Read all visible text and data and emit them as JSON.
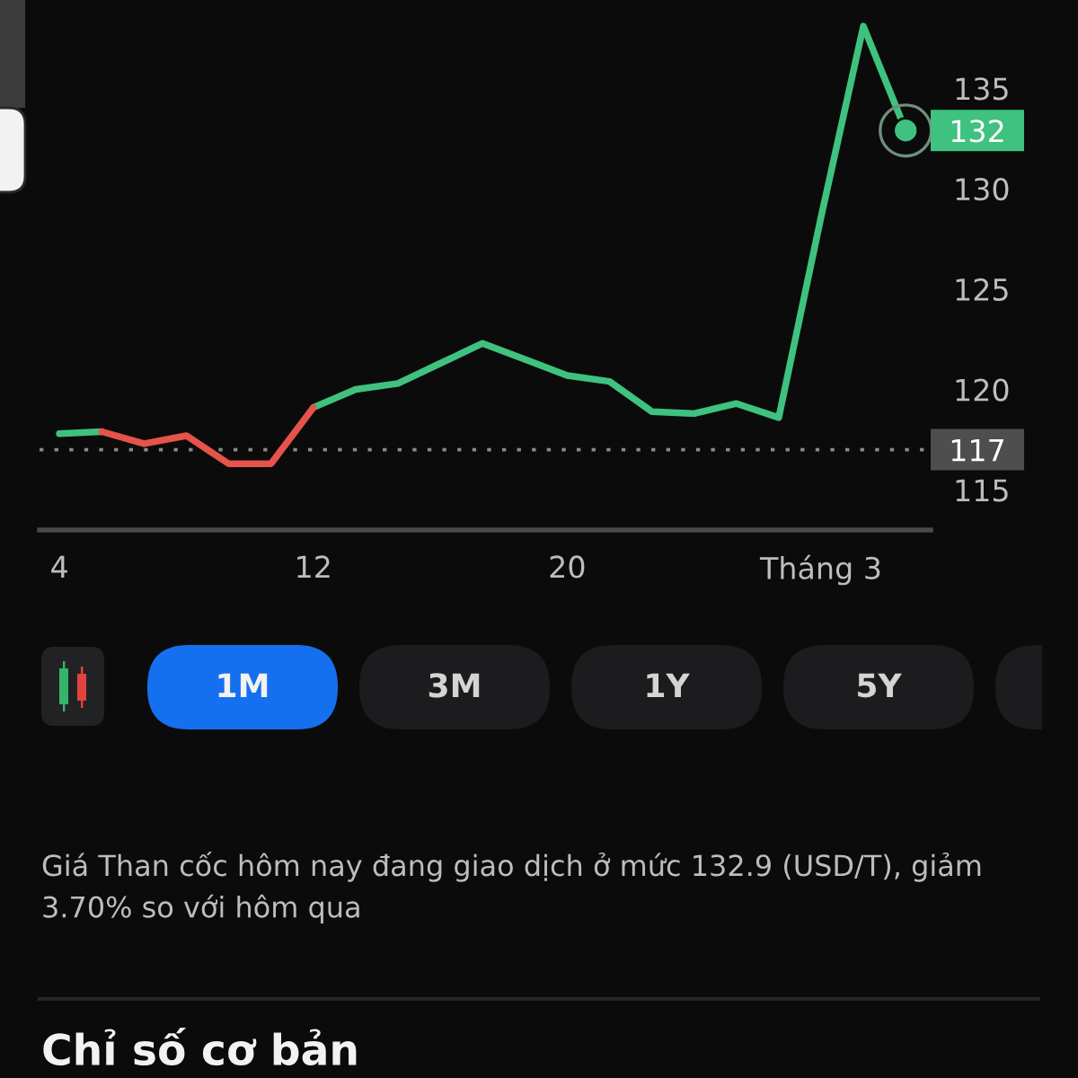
{
  "chart_data": [
    {
      "type": "line",
      "categories": [
        "4",
        null,
        null,
        null,
        null,
        null,
        "12",
        null,
        null,
        null,
        null,
        null,
        "20",
        null,
        null,
        null,
        null,
        null,
        "Tháng 3",
        null,
        null
      ],
      "series": [
        {
          "color": "#3fc27f",
          "values": [
            117.8,
            117.9,
            null,
            null,
            null,
            null,
            119.1,
            120.0,
            120.3,
            121.3,
            122.3,
            121.5,
            120.7,
            120.4,
            118.9,
            118.8,
            119.3,
            118.6,
            128.6,
            138.1,
            132.9
          ]
        },
        {
          "color": "#e5534b",
          "values": [
            null,
            117.9,
            117.3,
            117.7,
            116.3,
            116.3,
            119.1,
            null,
            null,
            null,
            null,
            null,
            null,
            null,
            null,
            null,
            null,
            null,
            null,
            null,
            null
          ]
        }
      ],
      "ylim": [
        113,
        139.4
      ],
      "yticks": [
        115,
        120,
        125,
        130,
        135
      ],
      "ref_lines": [
        {
          "axis": "y",
          "value": 117,
          "label": "117",
          "color": "#8a8a8a",
          "line_style": "dotted"
        }
      ],
      "annotations": [
        "132"
      ],
      "grid": false,
      "marker": "none",
      "line_style": "solid"
    },
    {
      "type": "other",
      "categories": [
        "1M",
        "3M",
        "1Y",
        "5Y"
      ],
      "colors": [
        "#1570ef",
        "#1c1c1e",
        "#1c1c1e",
        "#1c1c1e"
      ]
    },
    {
      "type": "other",
      "annotations": [
        "Giá Than cốc hôm nay đang giao dịch ở mức 132.9 (USD/T), giảm 3.70% so với hôm qua"
      ],
      "title": "Chỉ số cơ bản"
    }
  ]
}
